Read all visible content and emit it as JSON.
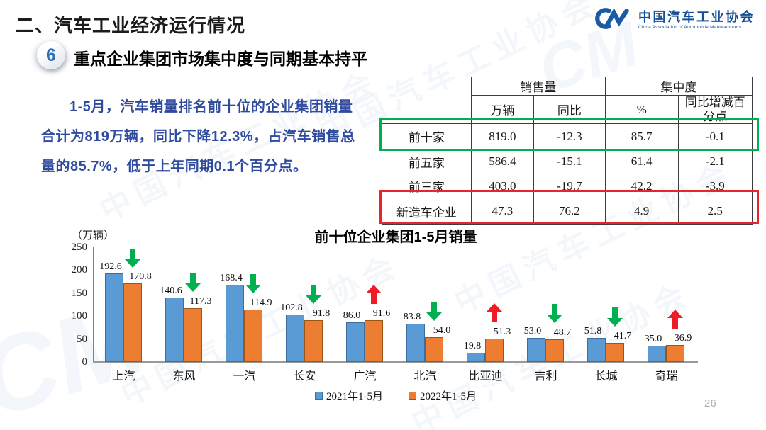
{
  "header": {
    "title": "二、汽车工业经济运行情况",
    "logo": {
      "mark": "CM",
      "name": "中国汽车工业协会",
      "subtitle": "China Association of Automobile Manufacturers"
    }
  },
  "section": {
    "badge": "6",
    "heading": "重点企业集团市场集中度与同期基本持平"
  },
  "intro": {
    "text": "1-5月，汽车销量排名前十位的企业集团销量合计为819万辆，同比下降12.3%，占汽车销售总量的85.7%，低于上年同期0.1个百分点。"
  },
  "table": {
    "group_headers": [
      {
        "label": "销售量",
        "span": 2
      },
      {
        "label": "集中度",
        "span": 2
      }
    ],
    "sub_headers": [
      "万辆",
      "同比",
      "%",
      "同比增减百分点"
    ],
    "rows": [
      {
        "label": "前十家",
        "values": [
          "819.0",
          "-12.3",
          "85.7",
          "-0.1"
        ],
        "highlight": "green"
      },
      {
        "label": "前五家",
        "values": [
          "586.4",
          "-15.1",
          "61.4",
          "-2.1"
        ],
        "highlight": ""
      },
      {
        "label": "前三家",
        "values": [
          "403.0",
          "-19.7",
          "42.2",
          "-3.9"
        ],
        "highlight": ""
      },
      {
        "label": "新造车企业",
        "values": [
          "47.3",
          "76.2",
          "4.9",
          "2.5"
        ],
        "highlight": "red"
      }
    ]
  },
  "chart_data": {
    "type": "bar",
    "title": "前十位企业集团1-5月销量",
    "unit_label": "（万辆）",
    "categories": [
      "上汽",
      "东风",
      "一汽",
      "长安",
      "广汽",
      "北汽",
      "比亚迪",
      "吉利",
      "长城",
      "奇瑞"
    ],
    "series": [
      {
        "name": "2021年1-5月",
        "values": [
          192.6,
          140.6,
          168.4,
          102.8,
          86.0,
          83.8,
          19.8,
          53.0,
          51.8,
          35.0
        ]
      },
      {
        "name": "2022年1-5月",
        "values": [
          170.8,
          117.3,
          114.9,
          91.8,
          91.6,
          54.0,
          51.3,
          48.7,
          41.7,
          36.9
        ]
      }
    ],
    "trend_arrows": [
      "down",
      "down",
      "down",
      "down",
      "up",
      "down",
      "up",
      "down",
      "down",
      "up"
    ],
    "ylim": [
      0,
      250
    ],
    "yticks": [
      0,
      50,
      100,
      150,
      200,
      250
    ],
    "grid": false,
    "legend_position": "bottom"
  },
  "colors": {
    "series_2021": "#5B9BD5",
    "series_2021_border": "#3A6E9F",
    "series_2022": "#ED7D31",
    "series_2022_border": "#9C5517",
    "arrow_down": "#00B050",
    "arrow_up": "#EE1C25",
    "highlight_green": "#00B050",
    "highlight_red": "#E8252A",
    "body_text": "#2F4B9E",
    "brand_blue": "#1B5AA5"
  },
  "page": {
    "number": "26"
  }
}
